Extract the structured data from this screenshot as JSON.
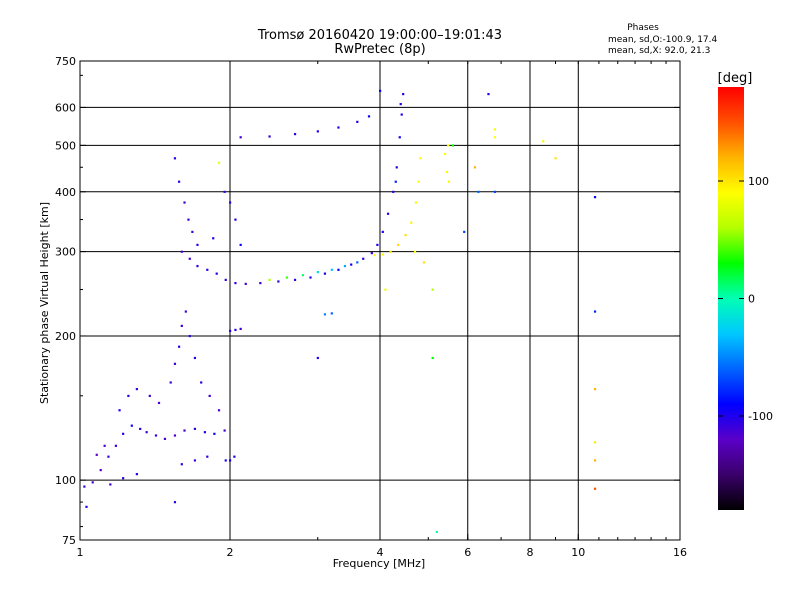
{
  "header": {
    "title_line1": "Tromsø 20160420 19:00:00–19:01:43",
    "title_line2": "RwPretec (8p)",
    "phases_title": "Phases",
    "phases_o": "mean, sd,O:-100.9, 17.4",
    "phases_x": "mean, sd,X:  92.0, 21.3"
  },
  "colorbar": {
    "unit_label": "[deg]",
    "tick_labels": [
      "100",
      "0",
      "-100"
    ],
    "tick_values": [
      100,
      0,
      -100
    ],
    "range": [
      -180,
      180
    ],
    "colormap": [
      "#000000",
      "#3a006a",
      "#5a00c8",
      "#0000ff",
      "#0064ff",
      "#00c8ff",
      "#00ffb4",
      "#00ff00",
      "#b4ff00",
      "#ffff00",
      "#ffb400",
      "#ff5000",
      "#ff0000"
    ]
  },
  "chart_data": {
    "type": "scatter",
    "xlabel": "Frequency [MHz]",
    "ylabel": "Stationary phase Virtual Height [km]",
    "xscale": "log",
    "yscale": "log",
    "xlim": [
      1,
      16
    ],
    "ylim": [
      75,
      750
    ],
    "x_ticks": [
      1,
      2,
      4,
      6,
      8,
      10,
      16
    ],
    "x_tick_labels": [
      "1",
      "2",
      "4",
      "6",
      "8",
      "10",
      "16"
    ],
    "y_ticks": [
      75,
      100,
      200,
      300,
      400,
      500,
      600,
      750
    ],
    "y_tick_labels": [
      "75",
      "100",
      "200",
      "300",
      "400",
      "500",
      "600",
      "750"
    ],
    "grid_x": [
      2,
      4,
      6,
      8,
      10
    ],
    "grid_y": [
      100,
      200,
      300,
      400,
      500,
      600
    ],
    "color_value": "phase in degrees",
    "points": [
      [
        1.02,
        97,
        -110
      ],
      [
        1.06,
        99,
        -115
      ],
      [
        1.1,
        105,
        -120
      ],
      [
        1.14,
        112,
        -105
      ],
      [
        1.18,
        118,
        -110
      ],
      [
        1.22,
        125,
        -100
      ],
      [
        1.27,
        130,
        -95
      ],
      [
        1.32,
        128,
        -105
      ],
      [
        1.36,
        126,
        -110
      ],
      [
        1.42,
        124,
        -108
      ],
      [
        1.48,
        122,
        -112
      ],
      [
        1.55,
        124,
        -115
      ],
      [
        1.62,
        127,
        -110
      ],
      [
        1.7,
        128,
        -105
      ],
      [
        1.78,
        126,
        -100
      ],
      [
        1.86,
        125,
        -95
      ],
      [
        1.95,
        127,
        -110
      ],
      [
        1.08,
        113,
        -120
      ],
      [
        1.12,
        118,
        -115
      ],
      [
        1.2,
        140,
        -100
      ],
      [
        1.25,
        150,
        -105
      ],
      [
        1.3,
        155,
        -108
      ],
      [
        1.38,
        150,
        -112
      ],
      [
        1.44,
        145,
        -115
      ],
      [
        1.52,
        160,
        -110
      ],
      [
        1.55,
        175,
        -108
      ],
      [
        1.58,
        190,
        -105
      ],
      [
        1.6,
        210,
        -110
      ],
      [
        1.63,
        225,
        -112
      ],
      [
        1.66,
        200,
        -108
      ],
      [
        1.7,
        180,
        -100
      ],
      [
        1.75,
        160,
        -105
      ],
      [
        1.82,
        150,
        -110
      ],
      [
        1.9,
        140,
        -115
      ],
      [
        1.96,
        110,
        -100
      ],
      [
        2.0,
        110,
        -95
      ],
      [
        2.04,
        112,
        -100
      ],
      [
        1.6,
        108,
        -105
      ],
      [
        1.7,
        110,
        -110
      ],
      [
        1.8,
        112,
        -108
      ],
      [
        1.15,
        98,
        -110
      ],
      [
        1.22,
        101,
        -105
      ],
      [
        1.3,
        103,
        -100
      ],
      [
        1.6,
        300,
        -110
      ],
      [
        1.66,
        290,
        -112
      ],
      [
        1.72,
        280,
        -110
      ],
      [
        1.8,
        275,
        -105
      ],
      [
        1.88,
        270,
        -100
      ],
      [
        1.96,
        262,
        -108
      ],
      [
        2.05,
        258,
        -110
      ],
      [
        2.15,
        257,
        -112
      ],
      [
        2.3,
        258,
        -110
      ],
      [
        2.5,
        260,
        -108
      ],
      [
        2.7,
        262,
        -105
      ],
      [
        2.9,
        265,
        -100
      ],
      [
        3.1,
        270,
        -95
      ],
      [
        3.3,
        275,
        -90
      ],
      [
        3.5,
        282,
        -95
      ],
      [
        3.7,
        290,
        -100
      ],
      [
        3.85,
        298,
        -105
      ],
      [
        3.95,
        310,
        -100
      ],
      [
        4.05,
        330,
        -95
      ],
      [
        4.15,
        360,
        -100
      ],
      [
        4.25,
        400,
        -105
      ],
      [
        4.32,
        450,
        -100
      ],
      [
        4.38,
        520,
        -95
      ],
      [
        4.42,
        580,
        -100
      ],
      [
        4.45,
        640,
        -105
      ],
      [
        4.4,
        610,
        -100
      ],
      [
        4.3,
        420,
        -80
      ],
      [
        3.6,
        285,
        -60
      ],
      [
        3.4,
        280,
        -40
      ],
      [
        3.2,
        275,
        -30
      ],
      [
        3.0,
        272,
        -20
      ],
      [
        2.8,
        268,
        10
      ],
      [
        2.6,
        265,
        40
      ],
      [
        2.4,
        262,
        60
      ],
      [
        3.9,
        295,
        90
      ],
      [
        4.05,
        296,
        95
      ],
      [
        4.2,
        300,
        100
      ],
      [
        4.35,
        310,
        105
      ],
      [
        4.5,
        325,
        100
      ],
      [
        4.62,
        345,
        95
      ],
      [
        4.72,
        380,
        92
      ],
      [
        4.78,
        420,
        90
      ],
      [
        4.82,
        470,
        92
      ],
      [
        5.4,
        480,
        90
      ],
      [
        5.45,
        440,
        85
      ],
      [
        5.5,
        420,
        92
      ],
      [
        5.48,
        500,
        88
      ],
      [
        6.8,
        520,
        90
      ],
      [
        6.8,
        540,
        85
      ],
      [
        8.5,
        510,
        95
      ],
      [
        9.0,
        470,
        100
      ],
      [
        6.2,
        450,
        120
      ],
      [
        6.3,
        400,
        -60
      ],
      [
        6.8,
        400,
        -70
      ],
      [
        5.6,
        500,
        30
      ],
      [
        2.1,
        520,
        -110
      ],
      [
        2.4,
        522,
        -108
      ],
      [
        2.7,
        528,
        -105
      ],
      [
        3.0,
        535,
        -100
      ],
      [
        3.3,
        545,
        -98
      ],
      [
        3.6,
        560,
        -100
      ],
      [
        3.8,
        575,
        -95
      ],
      [
        4.0,
        650,
        -90
      ],
      [
        1.55,
        470,
        -100
      ],
      [
        1.58,
        420,
        -105
      ],
      [
        1.62,
        380,
        -110
      ],
      [
        1.65,
        350,
        -108
      ],
      [
        1.68,
        330,
        -110
      ],
      [
        1.72,
        310,
        -105
      ],
      [
        1.85,
        320,
        -100
      ],
      [
        1.9,
        460,
        80
      ],
      [
        1.95,
        400,
        -110
      ],
      [
        2.0,
        380,
        -105
      ],
      [
        2.05,
        350,
        -100
      ],
      [
        2.1,
        310,
        -95
      ],
      [
        2.0,
        205,
        -100
      ],
      [
        2.05,
        206,
        -105
      ],
      [
        2.1,
        207,
        -110
      ],
      [
        3.1,
        222,
        -50
      ],
      [
        3.2,
        223,
        -60
      ],
      [
        5.1,
        250,
        60
      ],
      [
        5.1,
        180,
        30
      ],
      [
        5.2,
        78,
        0
      ],
      [
        3.0,
        180,
        -100
      ],
      [
        4.1,
        250,
        80
      ],
      [
        10.8,
        390,
        -90
      ],
      [
        10.8,
        225,
        -80
      ],
      [
        10.8,
        155,
        120
      ],
      [
        10.8,
        120,
        100
      ],
      [
        10.8,
        110,
        120
      ],
      [
        10.8,
        96,
        150
      ],
      [
        1.03,
        88,
        -100
      ],
      [
        1.55,
        90,
        -105
      ],
      [
        6.6,
        640,
        -100
      ],
      [
        5.9,
        330,
        -70
      ],
      [
        4.9,
        285,
        100
      ],
      [
        4.7,
        300,
        90
      ]
    ]
  }
}
